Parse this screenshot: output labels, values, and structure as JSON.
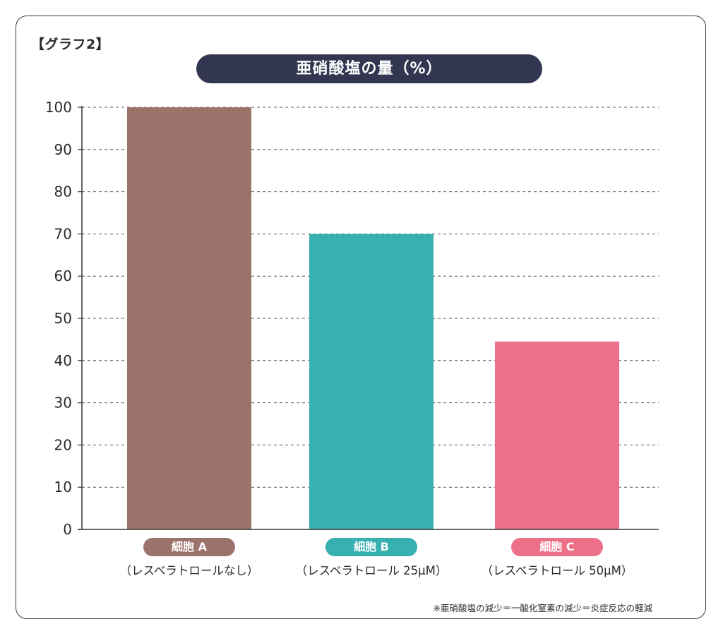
{
  "header": {
    "graph_label": "【グラフ2】",
    "title": "亜硝酸塩の量（%）"
  },
  "footnote": "※亜硝酸塩の減少＝一酸化窒素の減少＝炎症反応の軽減",
  "colors": {
    "title_bg": "#323650",
    "bar_a": "#9c736a",
    "bar_b": "#37b0b0",
    "bar_c": "#ec7087"
  },
  "chart_data": {
    "type": "bar",
    "title": "亜硝酸塩の量（%）",
    "xlabel": "",
    "ylabel": "",
    "ylim": [
      0,
      100
    ],
    "yticks": [
      0,
      10,
      20,
      30,
      40,
      50,
      60,
      70,
      80,
      90,
      100
    ],
    "grid": true,
    "categories": [
      {
        "label": "細胞 A",
        "sublabel": "（レスベラトロールなし）",
        "value": 100,
        "color": "#9c736a"
      },
      {
        "label": "細胞 B",
        "sublabel": "（レスベラトロール 25μM）",
        "value": 70,
        "color": "#37b0b0"
      },
      {
        "label": "細胞 C",
        "sublabel": "（レスベラトロール 50μM）",
        "value": 44.5,
        "color": "#ec7087"
      }
    ]
  }
}
